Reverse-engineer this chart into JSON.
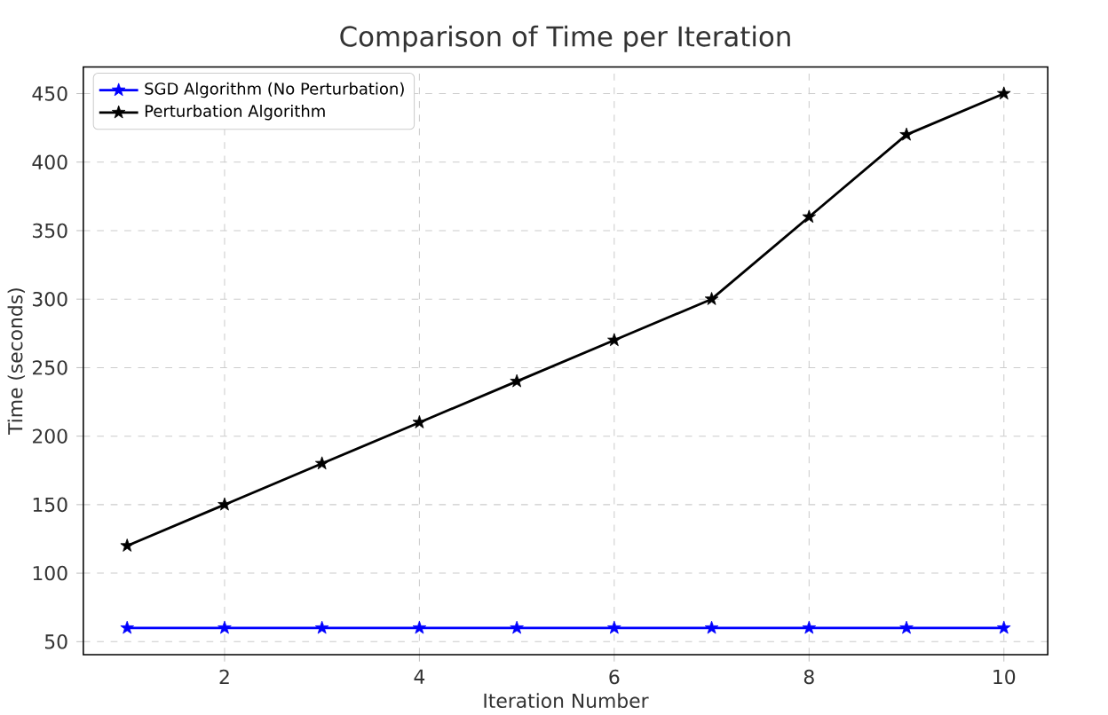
{
  "chart_data": {
    "type": "line",
    "title": "Comparison of Time per Iteration",
    "xlabel": "Iteration Number",
    "ylabel": "Time (seconds)",
    "x": [
      1,
      2,
      3,
      4,
      5,
      6,
      7,
      8,
      9,
      10
    ],
    "series": [
      {
        "name": "SGD Algorithm (No Perturbation)",
        "color": "#0000ff",
        "values": [
          60,
          60,
          60,
          60,
          60,
          60,
          60,
          60,
          60,
          60
        ]
      },
      {
        "name": "Perturbation Algorithm",
        "color": "#000000",
        "values": [
          120,
          150,
          180,
          210,
          240,
          270,
          300,
          360,
          420,
          450
        ]
      }
    ],
    "xlim": [
      0.55,
      10.45
    ],
    "ylim": [
      40.5,
      469.5
    ],
    "xticks": [
      2,
      4,
      6,
      8,
      10
    ],
    "yticks": [
      50,
      100,
      150,
      200,
      250,
      300,
      350,
      400,
      450
    ],
    "grid": true,
    "legend": "top left",
    "marker": "star",
    "line_style": "solid"
  }
}
